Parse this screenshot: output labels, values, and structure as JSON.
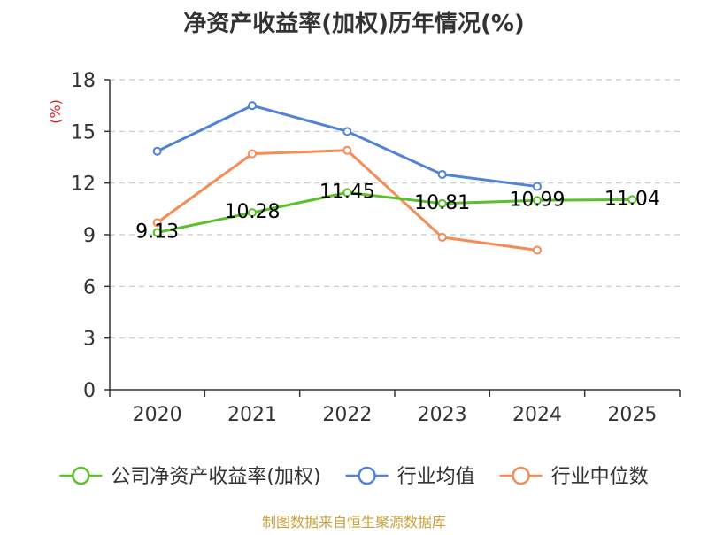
{
  "chart_data": {
    "type": "line",
    "title": "净资产收益率(加权)历年情况(%)",
    "ylabel": "(%)",
    "xlabel": "",
    "categories": [
      "2020",
      "2021",
      "2022",
      "2023",
      "2024",
      "2025"
    ],
    "ylim": [
      0,
      18
    ],
    "yticks": [
      0,
      3,
      6,
      9,
      12,
      15,
      18
    ],
    "grid": true,
    "legend_position": "bottom",
    "series": [
      {
        "name": "公司净资产收益率(加权)",
        "color": "#5cc02a",
        "values": [
          9.13,
          10.28,
          11.45,
          10.81,
          10.99,
          11.04
        ],
        "show_labels": true
      },
      {
        "name": "行业均值",
        "color": "#4f82d8",
        "values": [
          13.85,
          16.5,
          15.0,
          12.5,
          11.8,
          null
        ],
        "show_labels": false
      },
      {
        "name": "行业中位数",
        "color": "#f48c56",
        "values": [
          9.7,
          13.7,
          13.9,
          8.85,
          8.1,
          null
        ],
        "show_labels": false
      }
    ]
  },
  "source": "制图数据来自恒生聚源数据库"
}
